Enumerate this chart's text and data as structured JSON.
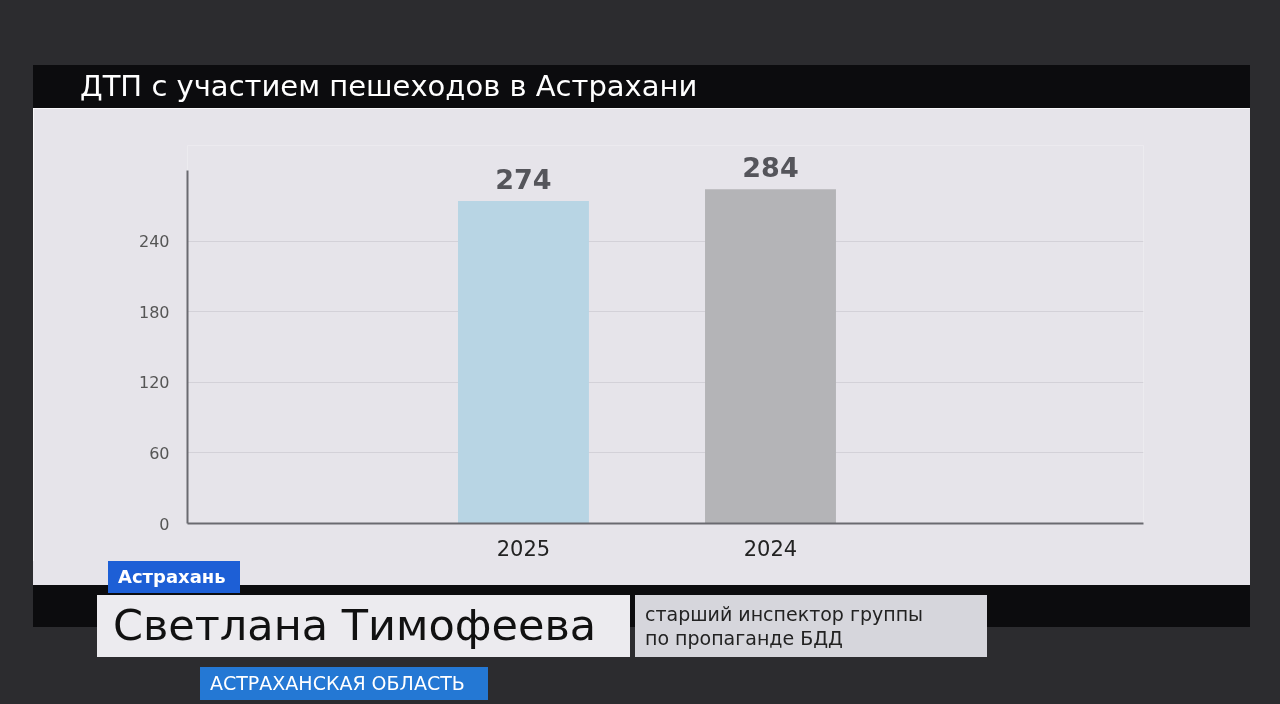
{
  "chart_data": {
    "type": "bar",
    "title": "ДТП с участием пешеходов в Астрахани",
    "categories": [
      "2025",
      "2024"
    ],
    "values": [
      274,
      284
    ],
    "colors": [
      "#b8d5e4",
      "#b4b4b7"
    ],
    "ylim": [
      0,
      300
    ],
    "yticks": [
      0,
      60,
      120,
      180,
      240
    ],
    "grid": "y",
    "data_labels": true,
    "annotations": [
      "Астрахань",
      "Светлана Тимофеева",
      "старший инспектор группы по пропаганде БДД",
      "АСТРАХАНСКАЯ ОБЛАСТЬ"
    ]
  }
}
